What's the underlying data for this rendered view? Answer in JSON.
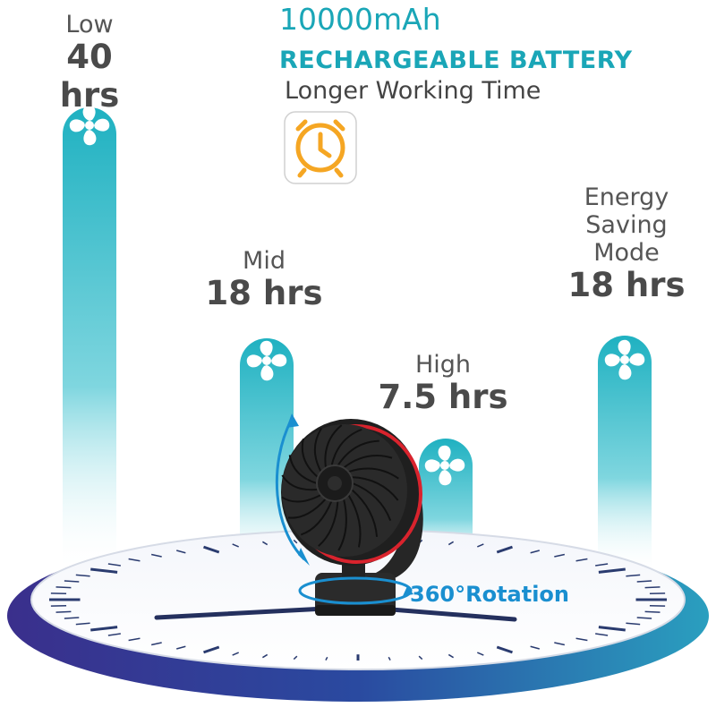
{
  "header": {
    "capacity": "10000mAh",
    "title": "RECHARGEABLE BATTERY",
    "subtitle": "Longer Working Time",
    "clock_icon": "clock-icon",
    "accent_color": "#1aa6b7",
    "icon_color": "#f5a623"
  },
  "modes": [
    {
      "name": "Low",
      "duration": "40 hrs"
    },
    {
      "name": "Mid",
      "duration": "18 hrs"
    },
    {
      "name": "High",
      "duration": "7.5 hrs"
    },
    {
      "name": "Energy Saving Mode",
      "name_lines": [
        "Energy",
        "Saving",
        "Mode"
      ],
      "duration": "18 hrs"
    }
  ],
  "rotation": {
    "label": "360°Rotation"
  },
  "colors": {
    "bar": "#21b5c5",
    "dial_rim": "#2a3b8f",
    "fan_body": "#1e1e1e",
    "fan_accent": "#d9232d"
  }
}
